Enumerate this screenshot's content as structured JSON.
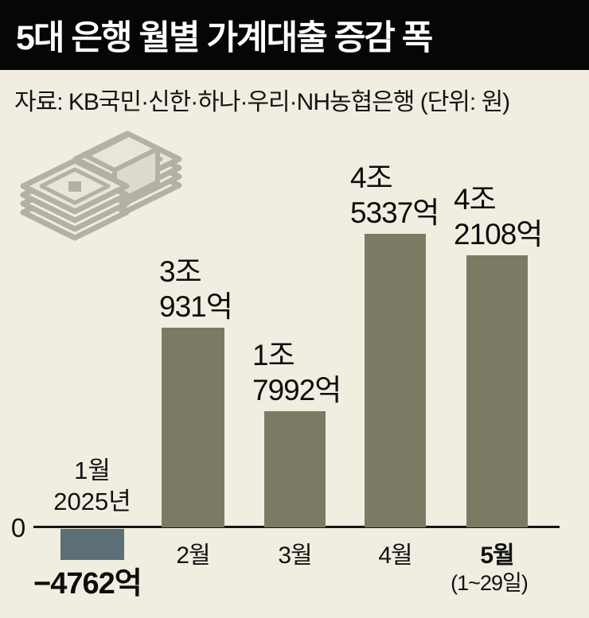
{
  "header": {
    "title": "5대 은행 월별 가계대출 증감 폭"
  },
  "source_line": "자료: KB국민·신한·하나·우리·NH농협은행  (단위: 원)",
  "axis": {
    "zero_label": "0"
  },
  "colors": {
    "background": "#f1ede0",
    "header_bg": "#060606",
    "header_text": "#ffffff",
    "text": "#111111",
    "bar_positive": "#7b7b64",
    "bar_negative": "#5d6f76",
    "icon_gray": "#b5b0a4",
    "icon_light": "#e9e5d9"
  },
  "icons": [
    {
      "name": "money-stack-icon",
      "meaning": "stacks of banded banknotes"
    }
  ],
  "chart_data": {
    "type": "bar",
    "title": "5대 은행 월별 가계대출 증감 폭",
    "source": "KB국민·신한·하나·우리·NH농협은행",
    "unit": "원",
    "categories": [
      "1월",
      "2월",
      "3월",
      "4월",
      "5월"
    ],
    "values_eok": [
      -4762,
      30931,
      17992,
      45337,
      42108
    ],
    "baseline": 0,
    "grid": false,
    "legend": false,
    "bars": [
      {
        "month": "1월",
        "sublabel": "2025년",
        "value_eok": -4762,
        "value_label": "−4762억",
        "negative": true
      },
      {
        "month": "2월",
        "value_eok": 30931,
        "value_label_lines": [
          "3조",
          "931억"
        ]
      },
      {
        "month": "3월",
        "value_eok": 17992,
        "value_label_lines": [
          "1조",
          "7992억"
        ]
      },
      {
        "month": "4월",
        "value_eok": 45337,
        "value_label_lines": [
          "4조",
          "5337억"
        ]
      },
      {
        "month": "5월",
        "month_note": "(1~29일)",
        "value_eok": 42108,
        "value_label_lines": [
          "4조",
          "2108억"
        ]
      }
    ]
  }
}
